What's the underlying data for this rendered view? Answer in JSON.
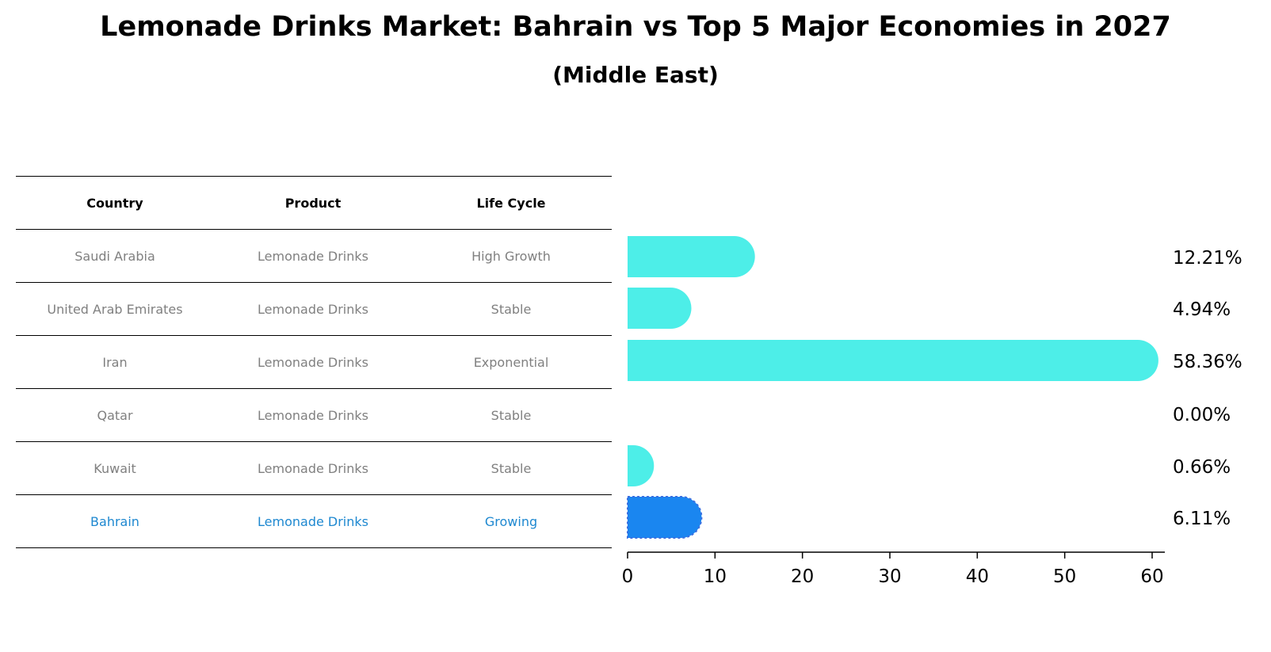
{
  "title": "Lemonade Drinks Market: Bahrain vs Top 5 Major Economies in 2027",
  "subtitle": "(Middle East)",
  "table": {
    "headers": [
      "Country",
      "Product",
      "Life Cycle"
    ],
    "rows": [
      {
        "country": "Saudi Arabia",
        "product": "Lemonade Drinks",
        "life_cycle": "High Growth"
      },
      {
        "country": "United Arab Emirates",
        "product": "Lemonade Drinks",
        "life_cycle": "Stable"
      },
      {
        "country": "Iran",
        "product": "Lemonade Drinks",
        "life_cycle": "Exponential"
      },
      {
        "country": "Qatar",
        "product": "Lemonade Drinks",
        "life_cycle": "Stable"
      },
      {
        "country": "Kuwait",
        "product": "Lemonade Drinks",
        "life_cycle": "Stable"
      },
      {
        "country": "Bahrain",
        "product": "Lemonade Drinks",
        "life_cycle": "Growing"
      }
    ]
  },
  "colors": {
    "bar": "#4deee8",
    "highlight_bar": "#1a86f0",
    "highlight_text": "#1e88d0",
    "table_text": "#808080"
  },
  "chart_data": {
    "type": "bar",
    "orientation": "horizontal",
    "categories": [
      "Saudi Arabia",
      "United Arab Emirates",
      "Iran",
      "Qatar",
      "Kuwait",
      "Bahrain"
    ],
    "values": [
      12.21,
      4.94,
      58.36,
      0.0,
      0.66,
      6.11
    ],
    "value_labels": [
      "12.21%",
      "4.94%",
      "58.36%",
      "0.00%",
      "0.66%",
      "6.11%"
    ],
    "highlight": "Bahrain",
    "xlim": [
      0,
      60
    ],
    "xticks": [
      0,
      10,
      20,
      30,
      40,
      50,
      60
    ],
    "xlabel": "",
    "ylabel": ""
  }
}
